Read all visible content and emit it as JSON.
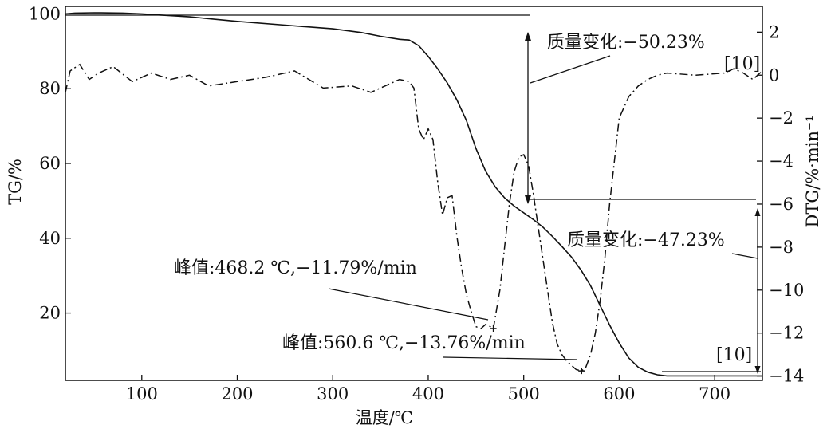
{
  "chart_data": {
    "type": "line",
    "xlabel": "温度/℃",
    "ylabel_left": "TG/%",
    "ylabel_right": "DTG/%·min⁻¹",
    "xlim": [
      20,
      750
    ],
    "ylim_left": [
      2,
      102
    ],
    "ylim_right": [
      -14.2,
      3.2
    ],
    "x_ticks": [
      "100",
      "200",
      "300",
      "400",
      "500",
      "600",
      "700"
    ],
    "y_left_ticks": [
      "100",
      "80",
      "60",
      "40",
      "20"
    ],
    "y_right_ticks": [
      "2",
      "0",
      "−2",
      "−4",
      "−6",
      "−8",
      "−10",
      "−12",
      "−14"
    ],
    "grid": false,
    "series": [
      {
        "axis": "left",
        "style": "solid",
        "x": [
          20,
          30,
          50,
          80,
          100,
          150,
          200,
          250,
          300,
          330,
          350,
          370,
          380,
          390,
          400,
          410,
          420,
          430,
          440,
          450,
          460,
          470,
          480,
          490,
          500,
          510,
          520,
          530,
          540,
          550,
          560,
          570,
          580,
          590,
          600,
          610,
          620,
          630,
          640,
          650,
          700,
          750
        ],
        "y": [
          100,
          100.2,
          100.3,
          100.2,
          100,
          99.2,
          98,
          97,
          96,
          95,
          94,
          93.2,
          93,
          91.5,
          88.6,
          85.3,
          81.5,
          77,
          71.5,
          64,
          58,
          53.8,
          50.8,
          48.6,
          46.8,
          45,
          43,
          40.5,
          37.8,
          35,
          31.5,
          27.3,
          22,
          16.8,
          12,
          8,
          5.5,
          4.2,
          3.5,
          3.2,
          3.2,
          3.2
        ]
      },
      {
        "axis": "right",
        "style": "dashdot",
        "x": [
          20,
          25,
          35,
          45,
          55,
          70,
          90,
          110,
          130,
          150,
          170,
          200,
          230,
          260,
          290,
          320,
          340,
          355,
          370,
          380,
          385,
          390,
          395,
          400,
          405,
          410,
          415,
          420,
          425,
          430,
          435,
          440,
          445,
          450,
          455,
          460,
          465,
          468.2,
          475,
          480,
          485,
          490,
          495,
          500,
          505,
          510,
          515,
          520,
          525,
          530,
          535,
          540,
          545,
          550,
          555,
          560.6,
          565,
          570,
          575,
          580,
          585,
          590,
          595,
          600,
          610,
          620,
          630,
          640,
          650,
          680,
          710,
          720,
          730,
          740,
          750
        ],
        "y": [
          -0.8,
          0.2,
          0.5,
          -0.2,
          0.1,
          0.4,
          -0.3,
          0.1,
          -0.2,
          0,
          -0.5,
          -0.3,
          -0.1,
          0.2,
          -0.6,
          -0.5,
          -0.8,
          -0.5,
          -0.2,
          -0.3,
          -0.6,
          -2.5,
          -3,
          -2.5,
          -3,
          -5,
          -6.5,
          -5.7,
          -5.6,
          -7.5,
          -9,
          -10.2,
          -11,
          -11.7,
          -11.8,
          -11.6,
          -11.7,
          -11.79,
          -10,
          -8,
          -6,
          -4.5,
          -3.8,
          -3.7,
          -4.2,
          -5.5,
          -7,
          -8.5,
          -10,
          -11.5,
          -12.5,
          -13,
          -13.3,
          -13.5,
          -13.7,
          -13.76,
          -13.6,
          -13,
          -12,
          -10.5,
          -8.5,
          -6,
          -4,
          -2,
          -1,
          -0.5,
          -0.2,
          0,
          0.1,
          0,
          0.1,
          0.3,
          0.1,
          -0.2,
          0.2
        ]
      }
    ],
    "annotations": {
      "mass_change_1": "质量变化:−50.23%",
      "mass_change_2": "质量变化:−47.23%",
      "peak_1": "峰值:468.2 ℃,−11.79%/min",
      "peak_2": "峰值:560.6 ℃,−13.76%/min",
      "ref_1": "[10]",
      "ref_2": "[10]"
    }
  }
}
